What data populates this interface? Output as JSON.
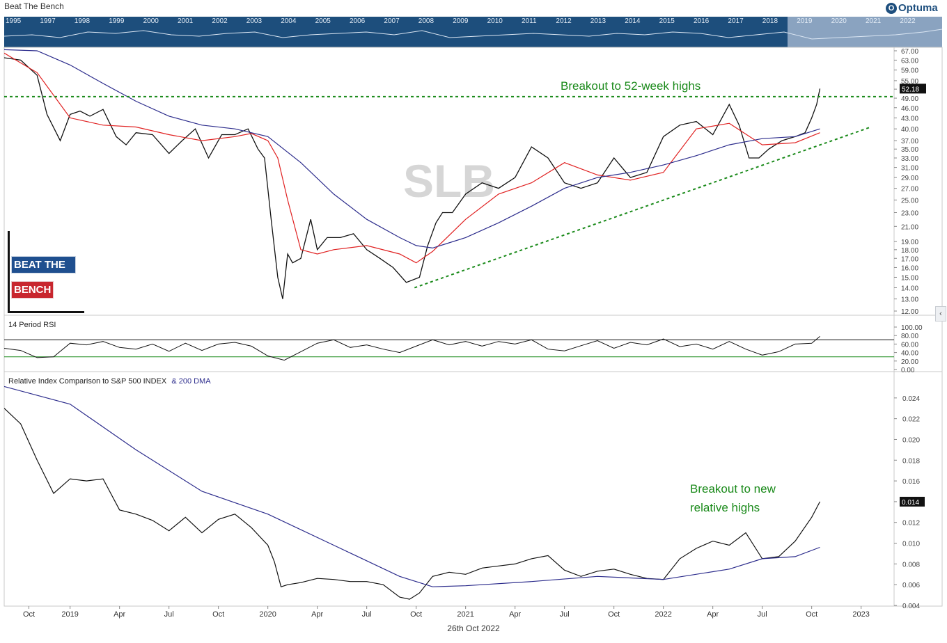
{
  "app": {
    "title": "Beat The Bench",
    "logo_text": "Optuma"
  },
  "overview": {
    "years": [
      "1995",
      "1997",
      "1998",
      "1999",
      "2000",
      "2001",
      "2002",
      "2003",
      "2004",
      "2005",
      "2006",
      "2007",
      "2008",
      "2009",
      "2010",
      "2011",
      "2012",
      "2013",
      "2014",
      "2015",
      "2016",
      "2017",
      "2018",
      "2019",
      "2020",
      "2021",
      "2022"
    ]
  },
  "badge": {
    "line1": "BEAT THE",
    "line2": "BENCH"
  },
  "footer": {
    "date": "26th Oct 2022"
  },
  "colors": {
    "price": "#111111",
    "ma50": "#e02020",
    "ma200": "#2c2c8c",
    "annotation": "#1a8a1a",
    "overview_bg": "#1d4e7c"
  },
  "chart_data": [
    {
      "type": "line",
      "name": "price-panel",
      "watermark": "SLB",
      "ylim": [
        12,
        67
      ],
      "scale": "log",
      "yticks": [
        "67.00",
        "63.00",
        "59.00",
        "55.00",
        "52.00",
        "49.00",
        "46.00",
        "43.00",
        "40.00",
        "37.00",
        "35.00",
        "33.00",
        "31.00",
        "29.00",
        "27.00",
        "25.00",
        "23.00",
        "21.00",
        "19.00",
        "18.00",
        "17.00",
        "16.00",
        "15.00",
        "14.00",
        "13.00",
        "12.00"
      ],
      "last_price_label": "52.18",
      "xlabels": [
        "Oct",
        "2019",
        "Apr",
        "Jul",
        "Oct",
        "2020",
        "Apr",
        "Jul",
        "Oct",
        "2021",
        "Apr",
        "Jul",
        "Oct",
        "2022",
        "Apr",
        "Jul",
        "Oct",
        "2023"
      ],
      "xlabel_t": [
        0.75,
        2,
        3.5,
        5,
        6.5,
        8,
        9.5,
        11,
        12.5,
        14,
        15.5,
        17,
        18.5,
        20,
        21.5,
        23,
        24.5,
        26
      ],
      "x_range_months": [
        0,
        27
      ],
      "series": [
        {
          "name": "SLB price",
          "t": [
            0,
            0.5,
            1,
            1.3,
            1.7,
            2,
            2.3,
            2.6,
            3,
            3.4,
            3.7,
            4,
            4.5,
            5,
            5.4,
            5.8,
            6.2,
            6.6,
            7,
            7.4,
            7.7,
            7.9,
            8.1,
            8.3,
            8.45,
            8.6,
            8.75,
            9,
            9.3,
            9.5,
            9.8,
            10.2,
            10.6,
            11,
            11.4,
            11.8,
            12.2,
            12.6,
            12.85,
            13.1,
            13.3,
            13.6,
            14,
            14.5,
            15,
            15.5,
            16,
            16.5,
            17,
            17.5,
            18,
            18.5,
            19,
            19.5,
            20,
            20.5,
            21,
            21.5,
            22,
            22.3,
            22.6,
            22.9,
            23.2,
            23.6,
            24,
            24.3,
            24.5,
            24.65,
            24.75
          ],
          "values": [
            64,
            63,
            57,
            44,
            37,
            44,
            45,
            43.5,
            45.5,
            38,
            36,
            39,
            38.5,
            34,
            37,
            40,
            33,
            38.5,
            38.5,
            40,
            35,
            33,
            22,
            15,
            13,
            17.5,
            16.5,
            17,
            22,
            18,
            19.5,
            19.5,
            20,
            18,
            17,
            16,
            14.5,
            15,
            18.5,
            21.5,
            23,
            23,
            26,
            28,
            27,
            29,
            35.5,
            33,
            28,
            27,
            28,
            33,
            29,
            30,
            38,
            41,
            42,
            38.5,
            47,
            41,
            33,
            33,
            35,
            37,
            38,
            39,
            43,
            47,
            52.18
          ]
        },
        {
          "name": "50 DMA",
          "t": [
            0,
            1,
            2,
            3,
            4,
            5,
            6,
            7,
            7.5,
            8,
            8.3,
            8.6,
            9,
            9.5,
            10,
            11,
            12,
            12.5,
            13,
            14,
            15,
            16,
            17,
            18,
            19,
            20,
            21,
            22,
            23,
            24,
            24.75
          ],
          "values": [
            66,
            58,
            43,
            41,
            40.5,
            38.5,
            37,
            38,
            38.8,
            37,
            33,
            25,
            18,
            17.5,
            18,
            18.5,
            17.5,
            16.5,
            17.8,
            22,
            26,
            28,
            32,
            29.5,
            28.5,
            30,
            40,
            41.5,
            36,
            36.5,
            39
          ]
        },
        {
          "name": "200 DMA",
          "t": [
            0,
            1,
            2,
            3,
            4,
            5,
            6,
            7,
            8,
            9,
            10,
            11,
            12,
            12.5,
            13,
            14,
            15,
            16,
            17,
            18,
            19,
            20,
            21,
            22,
            23,
            24,
            24.75
          ],
          "values": [
            67.5,
            67,
            61,
            54,
            48,
            43.5,
            41,
            40,
            38,
            32,
            26,
            22,
            19.5,
            18.5,
            18.2,
            19.5,
            21.5,
            24,
            27,
            29,
            30,
            31.5,
            33.5,
            36,
            37.5,
            38,
            40
          ]
        }
      ],
      "annotations": [
        {
          "text": "Breakout to 52-week highs",
          "type": "horizontal",
          "value": 49.5
        },
        {
          "text": "",
          "type": "trendline",
          "from_t": 12.45,
          "from_value": 14,
          "to_t": 26.3,
          "to_value": 40.5
        }
      ]
    },
    {
      "type": "line",
      "name": "rsi-panel",
      "title": "14 Period RSI",
      "ylim": [
        0,
        100
      ],
      "yticks": [
        "100.00",
        "80.00",
        "60.00",
        "40.00",
        "20.00",
        "0.00"
      ],
      "reference_lines": [
        70,
        30
      ],
      "series": [
        {
          "name": "RSI 14",
          "t": [
            0,
            0.5,
            1,
            1.5,
            2,
            2.5,
            3,
            3.5,
            4,
            4.5,
            5,
            5.5,
            6,
            6.5,
            7,
            7.5,
            8,
            8.5,
            9,
            9.5,
            10,
            10.5,
            11,
            11.5,
            12,
            12.5,
            13,
            13.5,
            14,
            14.5,
            15,
            15.5,
            16,
            16.5,
            17,
            17.5,
            18,
            18.5,
            19,
            19.5,
            20,
            20.5,
            21,
            21.5,
            22,
            22.5,
            23,
            23.5,
            24,
            24.5,
            24.75
          ],
          "values": [
            50,
            45,
            28,
            30,
            62,
            58,
            66,
            52,
            48,
            60,
            43,
            62,
            45,
            60,
            64,
            55,
            32,
            22,
            42,
            62,
            70,
            52,
            58,
            48,
            40,
            55,
            70,
            58,
            66,
            55,
            66,
            60,
            70,
            48,
            44,
            56,
            68,
            50,
            64,
            58,
            72,
            54,
            60,
            48,
            66,
            48,
            34,
            42,
            60,
            62,
            78
          ]
        }
      ]
    },
    {
      "type": "line",
      "name": "relative-panel",
      "title": "Relative Index Comparison to S&P 500 INDEX",
      "title_suffix": "& 200 DMA",
      "ylim": [
        0.004,
        0.0258
      ],
      "yticks": [
        "0.024",
        "0.022",
        "0.020",
        "0.018",
        "0.016",
        "0.014",
        "0.012",
        "0.010",
        "0.008",
        "0.006",
        "0.004"
      ],
      "last_value_label": "0.014",
      "series": [
        {
          "name": "SLB / SPX ratio",
          "t": [
            0,
            0.5,
            1,
            1.5,
            2,
            2.5,
            3,
            3.5,
            4,
            4.5,
            5,
            5.5,
            6,
            6.5,
            7,
            7.5,
            8,
            8.2,
            8.4,
            8.6,
            9,
            9.5,
            10,
            10.5,
            11,
            11.5,
            12,
            12.3,
            12.6,
            13,
            13.5,
            14,
            14.5,
            15,
            15.5,
            16,
            16.5,
            17,
            17.5,
            18,
            18.5,
            19,
            19.5,
            20,
            20.5,
            21,
            21.5,
            22,
            22.5,
            23,
            23.5,
            24,
            24.5,
            24.75
          ],
          "values": [
            0.023,
            0.0215,
            0.018,
            0.0148,
            0.0162,
            0.016,
            0.0162,
            0.0132,
            0.0128,
            0.0122,
            0.0112,
            0.0125,
            0.011,
            0.0123,
            0.0128,
            0.0115,
            0.0098,
            0.0082,
            0.0058,
            0.006,
            0.0062,
            0.0066,
            0.0065,
            0.0063,
            0.0063,
            0.006,
            0.0048,
            0.0046,
            0.0052,
            0.0068,
            0.0072,
            0.007,
            0.0076,
            0.0078,
            0.008,
            0.0085,
            0.0088,
            0.0074,
            0.0068,
            0.0073,
            0.0075,
            0.007,
            0.0066,
            0.0065,
            0.0085,
            0.0095,
            0.0102,
            0.0098,
            0.011,
            0.0085,
            0.0087,
            0.0102,
            0.0125,
            0.014
          ]
        },
        {
          "name": "200 DMA",
          "t": [
            0,
            2,
            4,
            6,
            8,
            10,
            12,
            13,
            14,
            16,
            18,
            20,
            22,
            23,
            24,
            24.75
          ],
          "values": [
            0.0251,
            0.0234,
            0.019,
            0.015,
            0.0128,
            0.0098,
            0.0068,
            0.0058,
            0.0059,
            0.0063,
            0.0068,
            0.0065,
            0.0075,
            0.0085,
            0.0087,
            0.0096
          ]
        }
      ],
      "annotations": [
        {
          "text_line1": "Breakout to new",
          "text_line2": "relative highs"
        }
      ]
    }
  ]
}
